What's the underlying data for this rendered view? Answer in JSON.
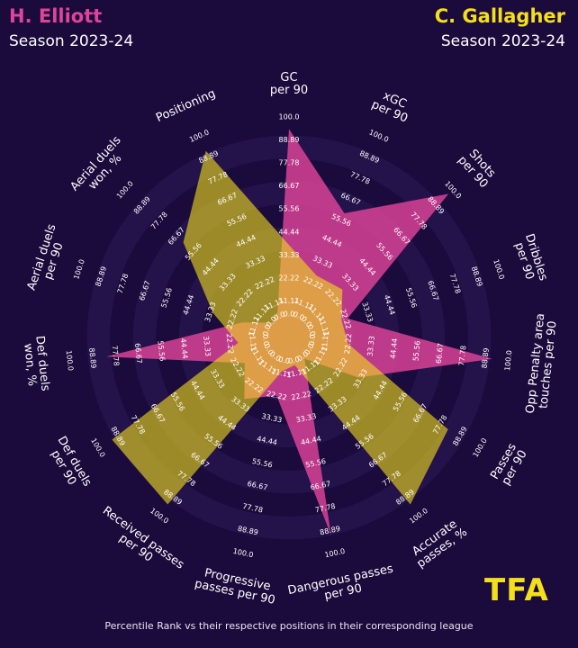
{
  "header": {
    "player1_name": "H. Elliott",
    "player1_season": "Season 2023-24",
    "player2_name": "C. Gallagher",
    "player2_season": "Season 2023-24"
  },
  "footer": "Percentile Rank vs their respective positions in their corresponding league",
  "logo_text": "TFA",
  "colors": {
    "background": "#1b0a3c",
    "player1": "#e0449a",
    "player2": "#f4e01a",
    "ring_dark": "#170636"
  },
  "chart_data": {
    "type": "radar",
    "range": [
      0,
      100
    ],
    "ring_values": [
      "0.0",
      "11.11",
      "22.22",
      "33.33",
      "44.44",
      "55.56",
      "66.67",
      "77.78",
      "88.89",
      "100.0"
    ],
    "parameters": [
      [
        "GC",
        "per 90"
      ],
      [
        "xGC",
        "per 90"
      ],
      [
        "Shots",
        "per 90"
      ],
      [
        "Dribbles",
        "per 90"
      ],
      [
        "Opp Penalty area",
        "touches per 90"
      ],
      [
        "Passes",
        "per 90"
      ],
      [
        "Accurate",
        "passes, %"
      ],
      [
        "Dangerous passes",
        "per 90"
      ],
      [
        "Progressive",
        "passes per 90"
      ],
      [
        "Received passes",
        "per 90"
      ],
      [
        "Def duels",
        "per 90"
      ],
      [
        "Def duels",
        "won, %"
      ],
      [
        "Aerial duels",
        "per 90"
      ],
      [
        "Aerial duels",
        "won, %"
      ],
      [
        "Positioning"
      ]
    ],
    "series": [
      {
        "name": "H. Elliott",
        "values": [
          92,
          57,
          95,
          21,
          90,
          30,
          4,
          89,
          20,
          28,
          16,
          80,
          15,
          2,
          5
        ]
      },
      {
        "name": "C. Gallagher",
        "values": [
          36,
          24,
          26,
          18,
          20,
          80,
          91,
          5,
          8,
          91,
          90,
          16,
          30,
          60,
          90
        ]
      }
    ]
  }
}
